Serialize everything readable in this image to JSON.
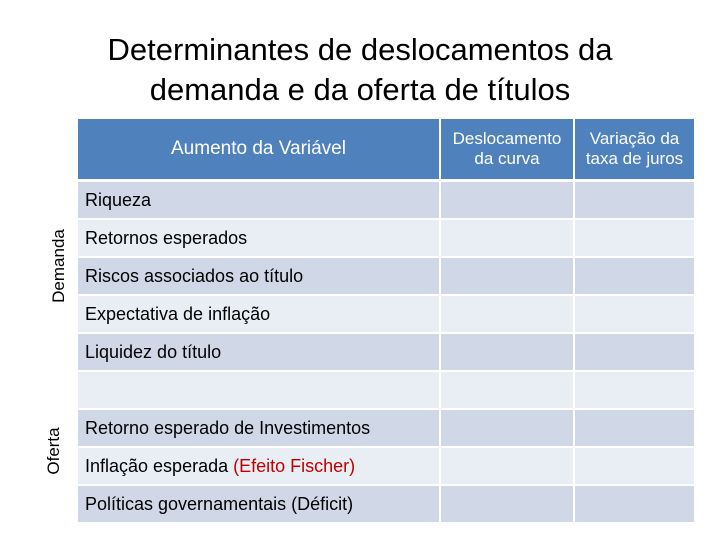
{
  "title": {
    "line1": "Determinantes de deslocamentos da",
    "line2": "demanda e da oferta de títulos"
  },
  "side_labels": {
    "demanda": "Demanda",
    "oferta": "Oferta"
  },
  "table": {
    "headers": {
      "variable": "Aumento da Variável",
      "shift_line1": "Deslocamento",
      "shift_line2": "da curva",
      "rate_line1": "Variação da",
      "rate_line2": "taxa de juros"
    },
    "rows": [
      {
        "label": "Riqueza",
        "highlight": ""
      },
      {
        "label": "Retornos esperados",
        "highlight": ""
      },
      {
        "label": "Riscos associados ao título",
        "highlight": ""
      },
      {
        "label": "Expectativa de inflação",
        "highlight": ""
      },
      {
        "label": "Liquidez do título",
        "highlight": ""
      },
      {
        "label": "",
        "highlight": ""
      },
      {
        "label": "Retorno esperado de Investimentos",
        "highlight": ""
      },
      {
        "label": "Inflação esperada ",
        "highlight": "(Efeito Fischer)"
      },
      {
        "label": "Políticas governamentais (Déficit)",
        "highlight": ""
      }
    ]
  },
  "colors": {
    "header_bg": "#4f81bd",
    "row_dark": "#d0d8e8",
    "row_light": "#e9edf4",
    "highlight_text": "#c00000"
  }
}
